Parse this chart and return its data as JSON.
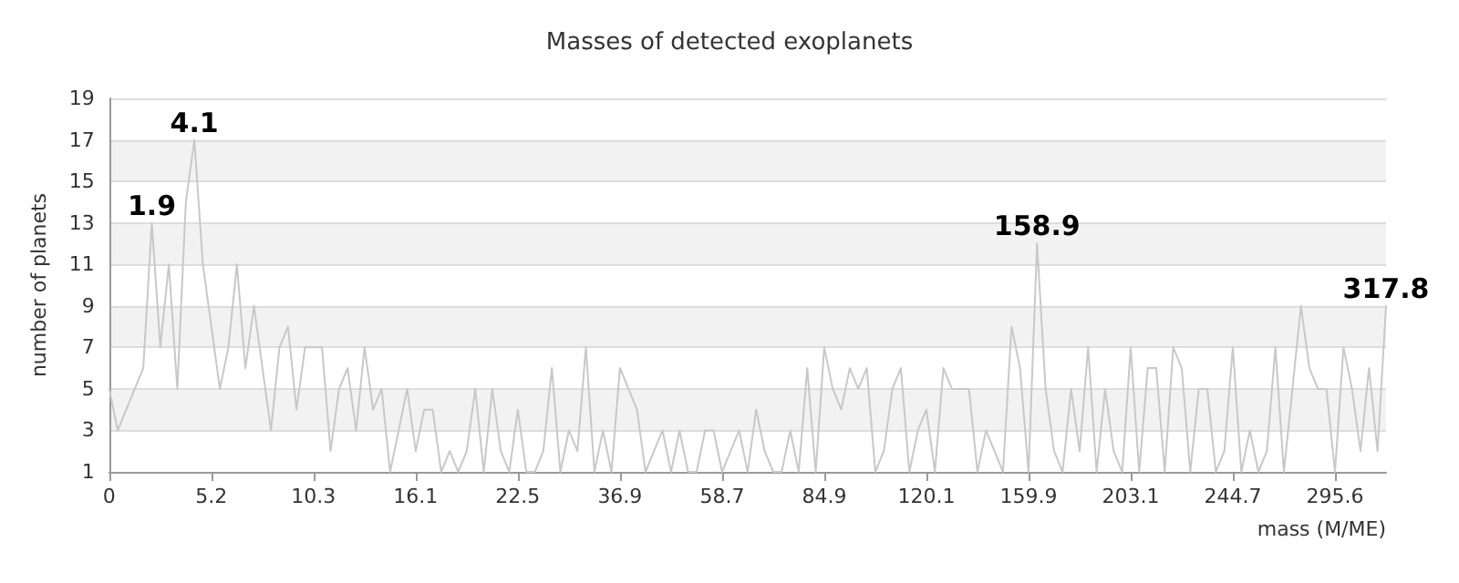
{
  "chart_data": {
    "type": "line",
    "title": "Masses of detected exoplanets",
    "xlabel": "mass (M/ME)",
    "ylabel": "number of planets",
    "categories": [
      "0",
      null,
      null,
      null,
      null,
      null,
      null,
      null,
      null,
      null,
      null,
      null,
      "5.2",
      null,
      null,
      null,
      null,
      null,
      null,
      null,
      null,
      null,
      null,
      null,
      "10.3",
      null,
      null,
      null,
      null,
      null,
      null,
      null,
      null,
      null,
      null,
      null,
      "16.1",
      null,
      null,
      null,
      null,
      null,
      null,
      null,
      null,
      null,
      null,
      null,
      "22.5",
      null,
      null,
      null,
      null,
      null,
      null,
      null,
      null,
      null,
      null,
      null,
      "36.9",
      null,
      null,
      null,
      null,
      null,
      null,
      null,
      null,
      null,
      null,
      null,
      "58.7",
      null,
      null,
      null,
      null,
      null,
      null,
      null,
      null,
      null,
      null,
      null,
      "84.9",
      null,
      null,
      null,
      null,
      null,
      null,
      null,
      null,
      null,
      null,
      null,
      "120.1",
      null,
      null,
      null,
      null,
      null,
      null,
      null,
      null,
      null,
      null,
      null,
      "159.9",
      null,
      null,
      null,
      null,
      null,
      null,
      null,
      null,
      null,
      null,
      null,
      "203.1",
      null,
      null,
      null,
      null,
      null,
      null,
      null,
      null,
      null,
      null,
      null,
      "244.7",
      null,
      null,
      null,
      null,
      null,
      null,
      null,
      null,
      null,
      null,
      null,
      "295.6",
      null,
      null,
      null,
      null,
      null,
      null
    ],
    "series": [
      {
        "color": "#c8c8c8",
        "values": [
          5,
          3,
          4,
          5,
          6,
          13,
          7,
          11,
          5,
          14,
          17,
          11,
          8,
          5,
          7,
          11,
          6,
          9,
          6,
          3,
          7,
          8,
          4,
          7,
          7,
          7,
          2,
          5,
          6,
          3,
          7,
          4,
          5,
          1,
          3,
          5,
          2,
          4,
          4,
          1,
          2,
          1,
          2,
          5,
          1,
          5,
          2,
          1,
          4,
          1,
          1,
          2,
          6,
          1,
          3,
          2,
          7,
          1,
          3,
          1,
          6,
          5,
          4,
          1,
          2,
          3,
          1,
          3,
          1,
          1,
          3,
          3,
          1,
          2,
          3,
          1,
          4,
          2,
          1,
          1,
          3,
          1,
          6,
          1,
          7,
          5,
          4,
          6,
          5,
          6,
          1,
          2,
          5,
          6,
          1,
          3,
          4,
          1,
          6,
          5,
          5,
          5,
          1,
          3,
          2,
          1,
          8,
          6,
          1,
          12,
          5,
          2,
          1,
          5,
          2,
          7,
          1,
          5,
          2,
          1,
          7,
          1,
          6,
          6,
          1,
          7,
          6,
          1,
          5,
          5,
          1,
          2,
          7,
          1,
          3,
          1,
          2,
          7,
          1,
          5,
          9,
          6,
          5,
          5,
          1,
          7,
          5,
          2,
          6,
          2,
          9
        ]
      }
    ],
    "annotations": [
      {
        "text": "1.9",
        "y": 13
      },
      {
        "text": "4.1",
        "y": 17
      },
      {
        "text": "158.9",
        "y": 12
      },
      {
        "text": "317.8",
        "y": 9
      }
    ],
    "ylim": [
      1,
      19
    ],
    "yticks": [
      1,
      3,
      5,
      7,
      9,
      11,
      13,
      15,
      17,
      19
    ],
    "grid": "y",
    "marker": "none",
    "line_style": "solid"
  }
}
